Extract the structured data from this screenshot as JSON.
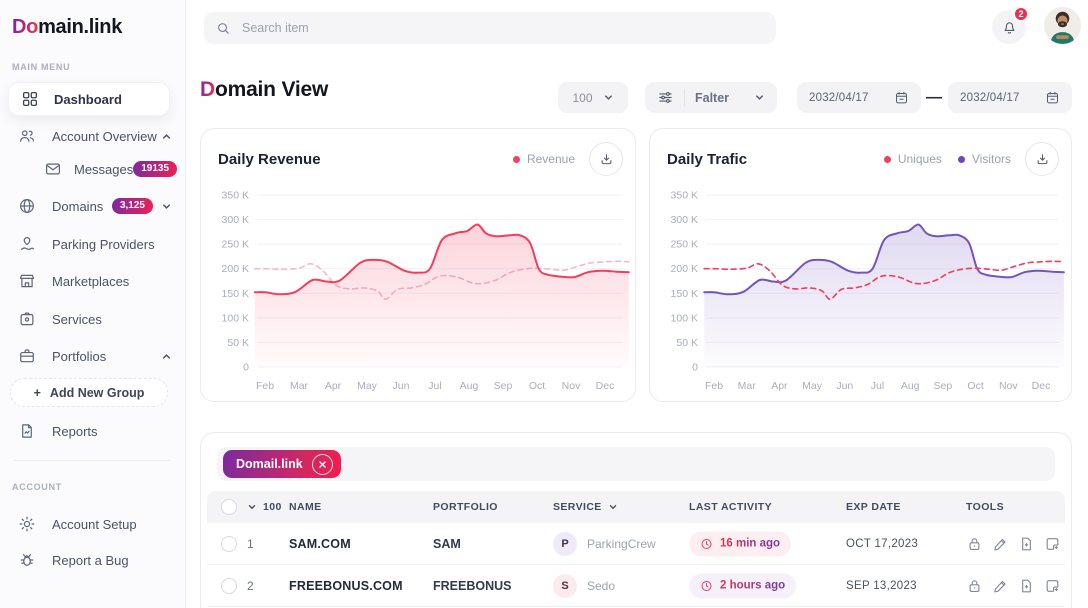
{
  "brand": {
    "logo_accent": "Do",
    "logo_rest": "main.link"
  },
  "topbar": {
    "search_placeholder": "Search item",
    "notification_count": "2"
  },
  "sidebar": {
    "main_menu_label": "MAIN MENU",
    "account_label": "ACCOUNT",
    "items": [
      {
        "label": "Dashboard",
        "active": true
      },
      {
        "label": "Account Overview"
      },
      {
        "label": "Messages",
        "badge": "19135"
      },
      {
        "label": "Domains",
        "badge": "3,125"
      },
      {
        "label": "Parking Providers"
      },
      {
        "label": "Marketplaces"
      },
      {
        "label": "Services"
      },
      {
        "label": "Portfolios"
      },
      {
        "label": "Add New Group",
        "plus": "+"
      },
      {
        "label": "Reports"
      },
      {
        "label": "Account Setup"
      },
      {
        "label": "Report a Bug"
      }
    ]
  },
  "page": {
    "title_accent": "D",
    "title_rest": "omain View"
  },
  "controls": {
    "page_size": "100",
    "filter_label": "Falter",
    "date_from": "2032/04/17",
    "date_separator": "—",
    "date_to": "2032/04/17"
  },
  "colors": {
    "accent_gradient_start": "#7B2AA0",
    "accent_gradient_end": "#EF2154",
    "revenue_red": "#F23D5C",
    "traffic_purple": "#7353BF",
    "dashed_pink": "#F6B9C6",
    "notification_badge_red": "#EF2D4E"
  },
  "chart_data": [
    {
      "type": "area",
      "title": "Daily Revenue",
      "x_labels": [
        "Feb",
        "Mar",
        "Apr",
        "May",
        "Jun",
        "Jul",
        "Aug",
        "Sep",
        "Oct",
        "Nov",
        "Dec"
      ],
      "y_ticks": [
        "350 K",
        "300 K",
        "250 K",
        "200 K",
        "150 K",
        "100 K",
        "50 K",
        "0"
      ],
      "ylim": [
        0,
        350
      ],
      "grid": true,
      "legend": [
        {
          "label": "Revenue",
          "color": "#F2415A"
        }
      ],
      "series": [
        {
          "name": "revenue-previous",
          "style": "dashed",
          "color": "#F6B9C6",
          "fill": false,
          "x": [
            -0.3,
            0,
            0.5,
            1.0,
            1.35,
            1.7,
            2.1,
            2.5,
            2.9,
            3.3,
            3.55,
            3.9,
            4.3,
            4.7,
            5.05,
            5.35,
            5.7,
            6.1,
            6.4,
            6.8,
            7.2,
            7.6,
            8.0,
            8.4,
            8.8,
            9.2,
            9.6,
            10.0,
            10.4,
            10.7
          ],
          "y": [
            200,
            200,
            199,
            201,
            210,
            196,
            166,
            159,
            161,
            155,
            138,
            158,
            161,
            168,
            183,
            186,
            182,
            171,
            170,
            177,
            192,
            199,
            201,
            199,
            197,
            205,
            212,
            214,
            215,
            214
          ]
        },
        {
          "name": "Revenue",
          "style": "solid",
          "color": "#F23D5C",
          "fill": true,
          "x": [
            -0.3,
            0,
            0.45,
            0.9,
            1.4,
            1.8,
            2.2,
            2.8,
            3.2,
            3.6,
            4.1,
            4.5,
            4.85,
            5.2,
            5.6,
            5.95,
            6.25,
            6.5,
            6.8,
            7.2,
            7.5,
            7.8,
            8.05,
            8.3,
            8.7,
            9.1,
            9.5,
            9.9,
            10.35,
            10.7
          ],
          "y": [
            152,
            152,
            148,
            153,
            177,
            174,
            176,
            212,
            218,
            214,
            196,
            192,
            200,
            258,
            272,
            277,
            290,
            272,
            266,
            268,
            268,
            252,
            200,
            188,
            184,
            183,
            193,
            196,
            194,
            193
          ]
        }
      ]
    },
    {
      "type": "area",
      "title": "Daily Trafic",
      "x_labels": [
        "Feb",
        "Mar",
        "Apr",
        "May",
        "Jun",
        "Jul",
        "Aug",
        "Sep",
        "Oct",
        "Nov",
        "Dec"
      ],
      "y_ticks": [
        "350 K",
        "300 K",
        "250 K",
        "200 K",
        "150 K",
        "100 K",
        "50 K",
        "0"
      ],
      "ylim": [
        0,
        350
      ],
      "grid": true,
      "legend": [
        {
          "label": "Uniques",
          "color": "#F2415A"
        },
        {
          "label": "Visitors",
          "color": "#6E45C0"
        }
      ],
      "series": [
        {
          "name": "Visitors",
          "style": "solid",
          "color": "#7353BF",
          "fill": true,
          "x": [
            -0.3,
            0,
            0.45,
            0.9,
            1.4,
            1.8,
            2.2,
            2.8,
            3.2,
            3.6,
            4.1,
            4.5,
            4.85,
            5.2,
            5.6,
            5.95,
            6.25,
            6.5,
            6.8,
            7.2,
            7.5,
            7.8,
            8.05,
            8.3,
            8.7,
            9.1,
            9.5,
            9.9,
            10.35,
            10.7
          ],
          "y": [
            152,
            152,
            148,
            153,
            177,
            174,
            176,
            212,
            218,
            214,
            196,
            192,
            200,
            258,
            272,
            277,
            290,
            272,
            266,
            268,
            268,
            252,
            200,
            188,
            184,
            183,
            193,
            196,
            194,
            193
          ]
        },
        {
          "name": "Uniques",
          "style": "dashed",
          "color": "#F23D5C",
          "fill": false,
          "x": [
            -0.3,
            0,
            0.5,
            1.0,
            1.35,
            1.7,
            2.1,
            2.5,
            2.9,
            3.3,
            3.55,
            3.9,
            4.3,
            4.7,
            5.05,
            5.35,
            5.7,
            6.1,
            6.4,
            6.8,
            7.2,
            7.6,
            8.0,
            8.4,
            8.8,
            9.2,
            9.6,
            10.0,
            10.4,
            10.7
          ],
          "y": [
            200,
            200,
            199,
            201,
            210,
            196,
            166,
            159,
            161,
            155,
            138,
            158,
            161,
            168,
            183,
            186,
            182,
            171,
            170,
            177,
            192,
            199,
            201,
            199,
            197,
            205,
            212,
            214,
            215,
            214
          ]
        }
      ]
    }
  ],
  "table": {
    "filter_chip": "Domail.link",
    "header": {
      "count": "100",
      "name": "NAME",
      "portfolio": "PORTFOLIO",
      "service": "SERVICE",
      "last_activity": "LAST ACTIVITY",
      "exp_date": "EXP DATE",
      "tools": "TOOLS"
    },
    "rows": [
      {
        "index": "1",
        "name": "SAM.COM",
        "portfolio": "SAM",
        "service_initial": "P",
        "service": "ParkingCrew",
        "last_activity": "16 min ago",
        "exp_date": "OCT 17,2023"
      },
      {
        "index": "2",
        "name": "FREEBONUS.COM",
        "portfolio": "FREEBONUS",
        "service_initial": "S",
        "service": "Sedo",
        "last_activity": "2 hours ago",
        "exp_date": "SEP 13,2023"
      }
    ]
  }
}
